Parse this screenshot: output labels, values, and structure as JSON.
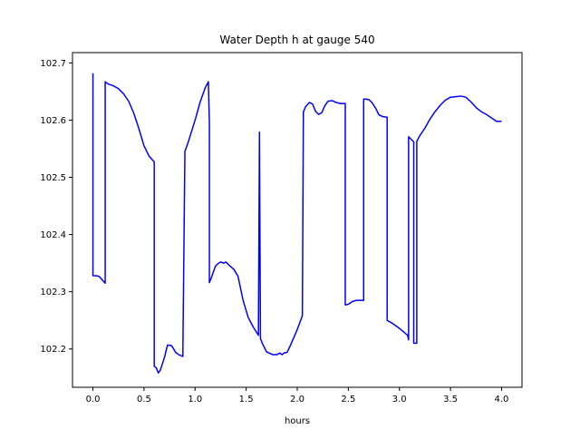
{
  "chart_data": {
    "type": "line",
    "title": "Water Depth h at gauge 540",
    "xlabel": "hours",
    "ylabel": "",
    "xlim": [
      -0.2,
      4.2
    ],
    "ylim": [
      102.133,
      102.718
    ],
    "xticks": [
      0.0,
      0.5,
      1.0,
      1.5,
      2.0,
      2.5,
      3.0,
      3.5,
      4.0
    ],
    "xtick_labels": [
      "0.0",
      "0.5",
      "1.0",
      "1.5",
      "2.0",
      "2.5",
      "3.0",
      "3.5",
      "4.0"
    ],
    "yticks": [
      102.2,
      102.3,
      102.4,
      102.5,
      102.6,
      102.7
    ],
    "ytick_labels": [
      "102.2",
      "102.3",
      "102.4",
      "102.5",
      "102.6",
      "102.7"
    ],
    "grid": false,
    "color": "#0000ff",
    "series": [
      {
        "x": [
          0.0,
          0.0,
          0.03,
          0.06,
          0.12,
          0.12,
          0.15,
          0.2,
          0.25,
          0.3,
          0.35,
          0.4,
          0.45,
          0.5,
          0.55,
          0.6,
          0.6,
          0.62,
          0.64,
          0.66,
          0.7,
          0.73,
          0.77,
          0.81,
          0.84,
          0.88,
          0.9,
          0.9,
          0.93,
          1.0,
          1.05,
          1.1,
          1.13,
          1.14,
          1.14,
          1.16,
          1.2,
          1.23,
          1.25,
          1.28,
          1.3,
          1.33,
          1.38,
          1.42,
          1.47,
          1.52,
          1.57,
          1.62,
          1.63,
          1.63,
          1.64,
          1.66,
          1.7,
          1.76,
          1.8,
          1.83,
          1.85,
          1.87,
          1.9,
          1.93,
          2.0,
          2.05,
          2.06,
          2.06,
          2.08,
          2.12,
          2.15,
          2.18,
          2.21,
          2.24,
          2.27,
          2.3,
          2.34,
          2.38,
          2.42,
          2.46,
          2.47,
          2.47,
          2.5,
          2.54,
          2.58,
          2.65,
          2.65,
          2.7,
          2.73,
          2.77,
          2.8,
          2.84,
          2.88,
          2.88,
          2.93,
          3.0,
          3.08,
          3.09,
          3.09,
          3.14,
          3.14,
          3.17,
          3.17,
          3.2,
          3.25,
          3.3,
          3.35,
          3.4,
          3.45,
          3.5,
          3.55,
          3.6,
          3.65,
          3.7,
          3.75,
          3.8,
          3.85,
          3.9,
          3.95,
          4.0
        ],
        "y": [
          102.682,
          102.328,
          102.328,
          102.327,
          102.315,
          102.667,
          102.663,
          102.66,
          102.655,
          102.646,
          102.633,
          102.612,
          102.585,
          102.555,
          102.537,
          102.527,
          102.17,
          102.167,
          102.158,
          102.163,
          102.185,
          102.207,
          102.206,
          102.194,
          102.19,
          102.187,
          102.54,
          102.545,
          102.56,
          102.6,
          102.632,
          102.657,
          102.667,
          102.595,
          102.316,
          102.325,
          102.345,
          102.35,
          102.352,
          102.35,
          102.352,
          102.347,
          102.339,
          102.327,
          102.285,
          102.255,
          102.238,
          102.224,
          102.579,
          102.575,
          102.218,
          102.209,
          102.195,
          102.19,
          102.19,
          102.193,
          102.19,
          102.193,
          102.194,
          102.205,
          102.234,
          102.258,
          102.611,
          102.614,
          102.623,
          102.631,
          102.628,
          102.615,
          102.61,
          102.613,
          102.625,
          102.633,
          102.634,
          102.631,
          102.629,
          102.629,
          102.629,
          102.277,
          102.278,
          102.283,
          102.285,
          102.285,
          102.637,
          102.636,
          102.631,
          102.62,
          102.609,
          102.606,
          102.605,
          102.25,
          102.245,
          102.236,
          102.224,
          102.216,
          102.571,
          102.562,
          102.21,
          102.21,
          102.563,
          102.573,
          102.586,
          102.602,
          102.615,
          102.626,
          102.635,
          102.64,
          102.641,
          102.642,
          102.64,
          102.632,
          102.622,
          102.615,
          102.61,
          102.604,
          102.598,
          102.598
        ]
      }
    ]
  }
}
